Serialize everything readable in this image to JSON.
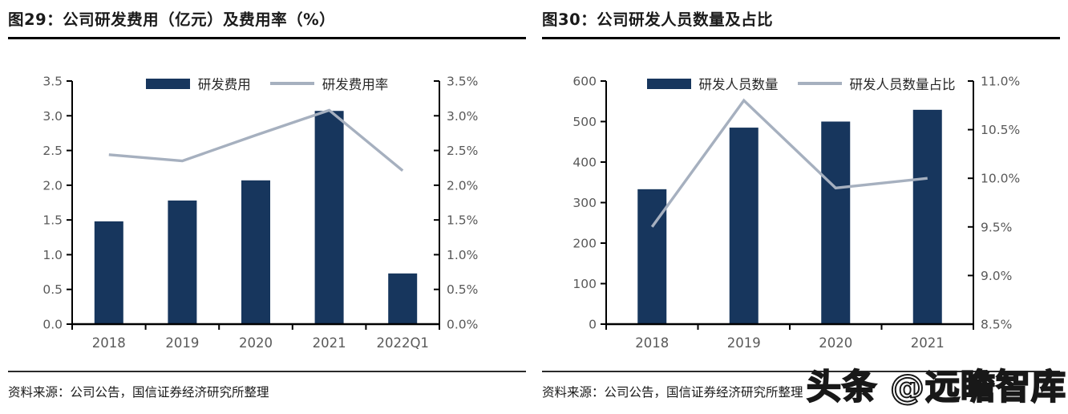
{
  "colors": {
    "bar": "#17365d",
    "line": "#a6b0bf",
    "axis": "#000000",
    "tick_label": "#595959",
    "text": "#1a1a1a"
  },
  "watermark": "头条 @远瞻智库",
  "chart_data": [
    {
      "type": "bar+line",
      "title": "图29：公司研发费用（亿元）及费用率（%）",
      "source": "资料来源：公司公告，国信证券经济研究所整理",
      "categories": [
        "2018",
        "2019",
        "2020",
        "2021",
        "2022Q1"
      ],
      "series": [
        {
          "name": "研发费用",
          "type": "bar",
          "axis": "left",
          "values": [
            1.48,
            1.78,
            2.07,
            3.07,
            0.73
          ]
        },
        {
          "name": "研发费用率",
          "type": "line",
          "axis": "right",
          "values": [
            2.44,
            2.35,
            2.72,
            3.08,
            2.21
          ]
        }
      ],
      "left_axis": {
        "min": 0,
        "max": 3.5,
        "ticks": [
          "0.0",
          "0.5",
          "1.0",
          "1.5",
          "2.0",
          "2.5",
          "3.0",
          "3.5"
        ]
      },
      "right_axis": {
        "min": 0,
        "max": 3.5,
        "ticks": [
          "0.0%",
          "0.5%",
          "1.0%",
          "1.5%",
          "2.0%",
          "2.5%",
          "3.0%",
          "3.5%"
        ]
      },
      "legend_position": "top-center",
      "grid": false
    },
    {
      "type": "bar+line",
      "title": "图30：公司研发人员数量及占比",
      "source": "资料来源：公司公告，国信证券经济研究所整理",
      "categories": [
        "2018",
        "2019",
        "2020",
        "2021"
      ],
      "series": [
        {
          "name": "研发人员数量",
          "type": "bar",
          "axis": "left",
          "values": [
            333,
            485,
            500,
            529
          ]
        },
        {
          "name": "研发人员数量占比",
          "type": "line",
          "axis": "right",
          "values": [
            9.5,
            10.8,
            9.9,
            10.0
          ]
        }
      ],
      "left_axis": {
        "min": 0,
        "max": 600,
        "ticks": [
          "0",
          "100",
          "200",
          "300",
          "400",
          "500",
          "600"
        ]
      },
      "right_axis": {
        "min": 8.5,
        "max": 11.0,
        "ticks": [
          "8.5%",
          "9.0%",
          "9.5%",
          "10.0%",
          "10.5%",
          "11.0%"
        ]
      },
      "legend_position": "top-center",
      "grid": false
    }
  ]
}
